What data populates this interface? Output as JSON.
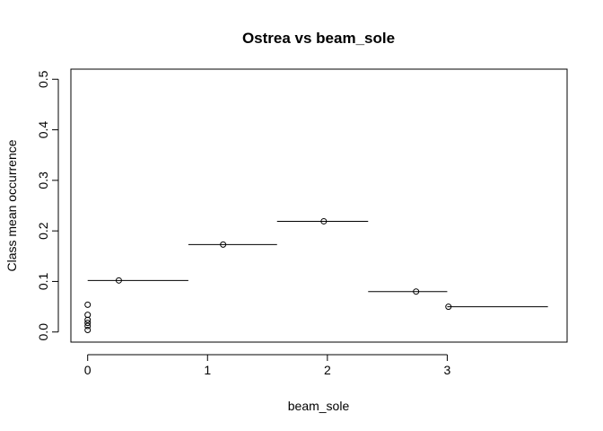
{
  "chart_data": {
    "type": "scatter",
    "title": "Ostrea vs beam_sole",
    "xlabel": "beam_sole",
    "ylabel": "Class mean occurrence",
    "xlim": [
      -0.14,
      4.0
    ],
    "ylim": [
      -0.02,
      0.52
    ],
    "xticks": [
      0,
      1,
      2,
      3
    ],
    "yticks": [
      0.0,
      0.1,
      0.2,
      0.3,
      0.4,
      0.5
    ],
    "xtick_labels": [
      "0",
      "1",
      "2",
      "3"
    ],
    "ytick_labels": [
      "0.0",
      "0.1",
      "0.2",
      "0.3",
      "0.4",
      "0.5"
    ],
    "grid": false,
    "segments": [
      {
        "x0": 0.0,
        "x1": 0.84,
        "y": 0.102
      },
      {
        "x0": 0.84,
        "x1": 1.58,
        "y": 0.173
      },
      {
        "x0": 1.58,
        "x1": 2.34,
        "y": 0.219
      },
      {
        "x0": 2.34,
        "x1": 3.0,
        "y": 0.08
      },
      {
        "x0": 3.0,
        "x1": 3.84,
        "y": 0.05
      }
    ],
    "points": [
      {
        "x": 0.0,
        "y": 0.054
      },
      {
        "x": 0.0,
        "y": 0.034
      },
      {
        "x": 0.0,
        "y": 0.024
      },
      {
        "x": 0.0,
        "y": 0.018
      },
      {
        "x": 0.0,
        "y": 0.012
      },
      {
        "x": 0.0,
        "y": 0.004
      },
      {
        "x": 0.26,
        "y": 0.102
      },
      {
        "x": 1.13,
        "y": 0.173
      },
      {
        "x": 1.97,
        "y": 0.219
      },
      {
        "x": 2.74,
        "y": 0.08
      },
      {
        "x": 3.01,
        "y": 0.05
      }
    ]
  }
}
